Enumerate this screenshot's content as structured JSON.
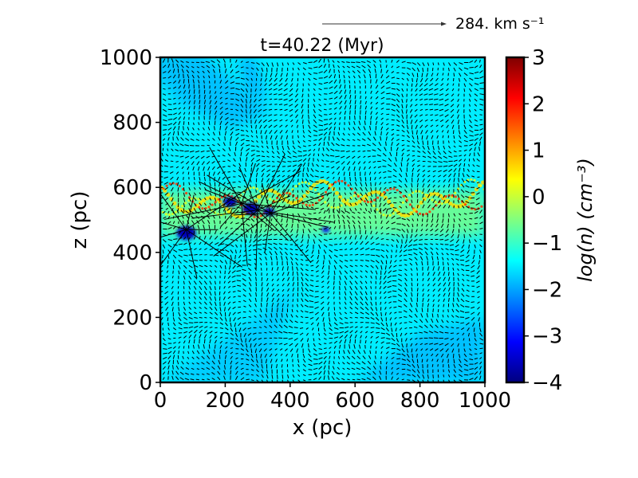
{
  "chart_data": {
    "type": "heatmap",
    "title": "t=40.22 (Myr)",
    "xlabel": "x (pc)",
    "ylabel": "z (pc)",
    "xlim": [
      0,
      1000
    ],
    "ylim": [
      0,
      1000
    ],
    "x_ticks": [
      "0",
      "200",
      "400",
      "600",
      "800",
      "1000"
    ],
    "y_ticks": [
      "0",
      "200",
      "400",
      "600",
      "800",
      "1000"
    ],
    "overlay": "velocity-vector-field",
    "reference_arrow_label": "284. km s⁻¹",
    "colorbar": {
      "label": "log(n) (cm⁻³)",
      "range": [
        -4,
        3
      ],
      "ticks": [
        "3",
        "2",
        "1",
        "0",
        "−1",
        "−2",
        "−3",
        "−4"
      ],
      "colormap": "jet",
      "colors": [
        "#00007f",
        "#0000ff",
        "#0080ff",
        "#00ffff",
        "#80ff80",
        "#ffff00",
        "#ff8000",
        "#ff0000",
        "#7f0000"
      ]
    },
    "field": {
      "background_log_n": -1.5,
      "features": [
        {
          "kind": "low-density-bubble",
          "x": [
            -60,
            120,
            340,
            220,
            60
          ],
          "z": [
            1000,
            1020,
            830,
            780,
            860
          ],
          "log_n": -1.9
        },
        {
          "kind": "low-density-bubble",
          "x": [
            240,
            290,
            330,
            270
          ],
          "z": [
            1000,
            1000,
            860,
            890
          ],
          "log_n": -2.0
        },
        {
          "kind": "low-density-bubble",
          "x": [
            0,
            320,
            420,
            300
          ],
          "z": [
            0,
            0,
            300,
            200
          ],
          "log_n": -1.8
        },
        {
          "kind": "low-density-bubble",
          "x": [
            600,
            1000,
            1000,
            800
          ],
          "z": [
            0,
            0,
            200,
            150
          ],
          "log_n": -1.9
        },
        {
          "kind": "dense-layer",
          "z_center": 520,
          "half_thickness": 70,
          "log_n": -0.5
        },
        {
          "kind": "dense-filament",
          "x": [
            0,
            1000
          ],
          "z": [
            560,
            570
          ],
          "log_n": 1.8
        },
        {
          "kind": "cavity",
          "x": 80,
          "z": 460,
          "r": 25,
          "log_n": -3.6
        },
        {
          "kind": "cavity",
          "x": 215,
          "z": 555,
          "r": 18,
          "log_n": -3.6
        },
        {
          "kind": "cavity",
          "x": 280,
          "z": 535,
          "r": 22,
          "log_n": -3.7
        },
        {
          "kind": "cavity",
          "x": 335,
          "z": 525,
          "r": 15,
          "log_n": -3.6
        },
        {
          "kind": "cavity",
          "x": 510,
          "z": 470,
          "r": 10,
          "log_n": -3.3
        }
      ]
    }
  }
}
